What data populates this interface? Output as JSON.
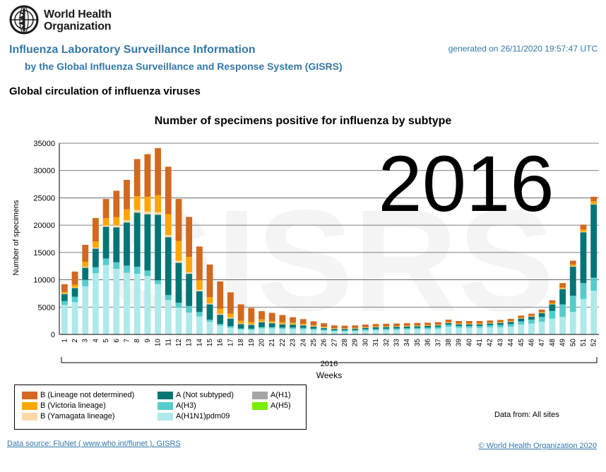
{
  "header": {
    "org_name_line1": "World Health",
    "org_name_line2": "Organization",
    "title": "Influenza Laboratory Surveillance Information",
    "subtitle": "by the Global Influenza Surveillance and Response System (GISRS)",
    "generated": "generated on 26/11/2020 19:57:47 UTC",
    "section_title": "Global circulation of influenza viruses"
  },
  "watermark": {
    "year": "2016",
    "text": "GISRS"
  },
  "chart_data": {
    "type": "bar",
    "stacked": true,
    "title": "Number of specimens positive for influenza by subtype",
    "xlabel": "Weeks",
    "ylabel": "Number of specimens",
    "year_label": "2016",
    "ylim": [
      0,
      35000
    ],
    "yticks": [
      0,
      5000,
      10000,
      15000,
      20000,
      25000,
      30000,
      35000
    ],
    "grid": true,
    "legend_position": "bottom-left",
    "categories": [
      "1",
      "2",
      "3",
      "4",
      "5",
      "6",
      "7",
      "8",
      "9",
      "10",
      "11",
      "12",
      "13",
      "14",
      "15",
      "16",
      "17",
      "18",
      "19",
      "20",
      "21",
      "22",
      "23",
      "24",
      "25",
      "26",
      "27",
      "28",
      "29",
      "30",
      "31",
      "32",
      "33",
      "34",
      "35",
      "36",
      "37",
      "38",
      "39",
      "40",
      "41",
      "42",
      "43",
      "44",
      "45",
      "46",
      "47",
      "48",
      "49",
      "50",
      "51",
      "52"
    ],
    "series": [
      {
        "name": "A(H1N1)pdm09",
        "color": "#aeeaea",
        "values": [
          5400,
          5900,
          8800,
          11200,
          12700,
          12000,
          11300,
          11100,
          10700,
          9200,
          6300,
          4900,
          4000,
          3300,
          2300,
          1600,
          1200,
          900,
          850,
          1100,
          1100,
          1000,
          1000,
          950,
          850,
          700,
          550,
          550,
          600,
          700,
          750,
          800,
          850,
          900,
          950,
          1000,
          1050,
          1400,
          1200,
          1200,
          1200,
          1300,
          1300,
          1400,
          1800,
          2000,
          2300,
          2900,
          3200,
          4100,
          6500,
          8000
        ]
      },
      {
        "name": "A(H3)",
        "color": "#55cccc",
        "values": [
          700,
          1000,
          1200,
          1100,
          1200,
          1200,
          1300,
          1300,
          1000,
          700,
          900,
          900,
          1200,
          800,
          400,
          300,
          300,
          200,
          200,
          250,
          250,
          250,
          250,
          250,
          200,
          200,
          200,
          200,
          200,
          250,
          250,
          250,
          250,
          250,
          250,
          250,
          300,
          400,
          350,
          350,
          350,
          400,
          450,
          500,
          600,
          700,
          900,
          1400,
          2300,
          3000,
          2900,
          2400
        ]
      },
      {
        "name": "A(Not subtyped)",
        "color": "#007575",
        "values": [
          1300,
          1600,
          2200,
          3400,
          5800,
          6400,
          7900,
          9900,
          10300,
          12000,
          10600,
          7300,
          5900,
          3800,
          2800,
          1700,
          1400,
          800,
          700,
          900,
          700,
          600,
          550,
          450,
          400,
          250,
          250,
          250,
          250,
          250,
          300,
          300,
          300,
          300,
          300,
          300,
          300,
          300,
          300,
          300,
          300,
          300,
          350,
          400,
          500,
          550,
          700,
          1200,
          2800,
          5300,
          9300,
          13400
        ]
      },
      {
        "name": "A(H1)",
        "color": "#a6a6a6",
        "values": [
          0,
          0,
          0,
          0,
          0,
          0,
          0,
          0,
          0,
          0,
          0,
          0,
          0,
          0,
          0,
          0,
          0,
          0,
          0,
          0,
          0,
          0,
          0,
          0,
          0,
          0,
          0,
          0,
          0,
          0,
          0,
          0,
          0,
          0,
          0,
          0,
          0,
          0,
          0,
          0,
          0,
          0,
          0,
          0,
          0,
          0,
          0,
          0,
          0,
          0,
          0,
          0
        ]
      },
      {
        "name": "A(H5)",
        "color": "#77ee00",
        "values": [
          0,
          0,
          0,
          0,
          0,
          0,
          0,
          0,
          0,
          0,
          0,
          0,
          0,
          0,
          0,
          0,
          0,
          0,
          0,
          0,
          0,
          0,
          0,
          0,
          0,
          0,
          0,
          0,
          0,
          0,
          0,
          0,
          0,
          0,
          0,
          0,
          0,
          0,
          0,
          0,
          0,
          0,
          0,
          0,
          0,
          0,
          0,
          0,
          0,
          0,
          0,
          0
        ]
      },
      {
        "name": "B (Yamagata lineage)",
        "color": "#ffd8a8",
        "values": [
          100,
          100,
          200,
          200,
          300,
          400,
          400,
          500,
          500,
          500,
          400,
          400,
          300,
          300,
          200,
          200,
          200,
          100,
          100,
          100,
          100,
          100,
          100,
          100,
          100,
          100,
          50,
          50,
          50,
          50,
          50,
          50,
          50,
          50,
          50,
          50,
          50,
          50,
          50,
          50,
          50,
          50,
          50,
          50,
          50,
          50,
          50,
          50,
          100,
          100,
          100,
          100
        ]
      },
      {
        "name": "B (Victoria lineage)",
        "color": "#ffa500",
        "values": [
          300,
          500,
          900,
          1100,
          1300,
          1500,
          2000,
          2500,
          2700,
          3100,
          3800,
          3600,
          2800,
          1700,
          1100,
          900,
          700,
          500,
          400,
          400,
          300,
          300,
          250,
          200,
          150,
          150,
          100,
          100,
          100,
          100,
          100,
          100,
          100,
          100,
          100,
          100,
          100,
          100,
          100,
          100,
          100,
          100,
          100,
          100,
          100,
          100,
          100,
          200,
          200,
          300,
          400,
          500
        ]
      },
      {
        "name": "B (Lineage not determined)",
        "color": "#d2691e",
        "values": [
          1400,
          2400,
          3100,
          4300,
          3500,
          4800,
          5400,
          6800,
          7800,
          8600,
          8700,
          7700,
          7300,
          6200,
          6000,
          5000,
          3900,
          3000,
          2600,
          1500,
          1500,
          1300,
          1000,
          850,
          700,
          650,
          500,
          450,
          450,
          450,
          450,
          450,
          450,
          450,
          450,
          450,
          450,
          450,
          450,
          450,
          450,
          400,
          400,
          400,
          400,
          400,
          500,
          500,
          800,
          700,
          900,
          800
        ]
      }
    ]
  },
  "legend": {
    "items": [
      {
        "label": "B (Lineage not determined)",
        "color": "#d2691e"
      },
      {
        "label": "B (Victoria lineage)",
        "color": "#ffa500"
      },
      {
        "label": "B (Yamagata lineage)",
        "color": "#ffd8a8"
      },
      {
        "label": "A (Not subtyped)",
        "color": "#007575"
      },
      {
        "label": "A(H3)",
        "color": "#55cccc"
      },
      {
        "label": "A(H1N1)pdm09",
        "color": "#aeeaea"
      },
      {
        "label": "A(H1)",
        "color": "#a6a6a6"
      },
      {
        "label": "A(H5)",
        "color": "#77ee00"
      }
    ]
  },
  "footer": {
    "data_from": "Data from: All sites",
    "source": "Data source: FluNet ( www.who.int/flunet ), GISRS",
    "copyright": "© World Health Organization 2020"
  }
}
